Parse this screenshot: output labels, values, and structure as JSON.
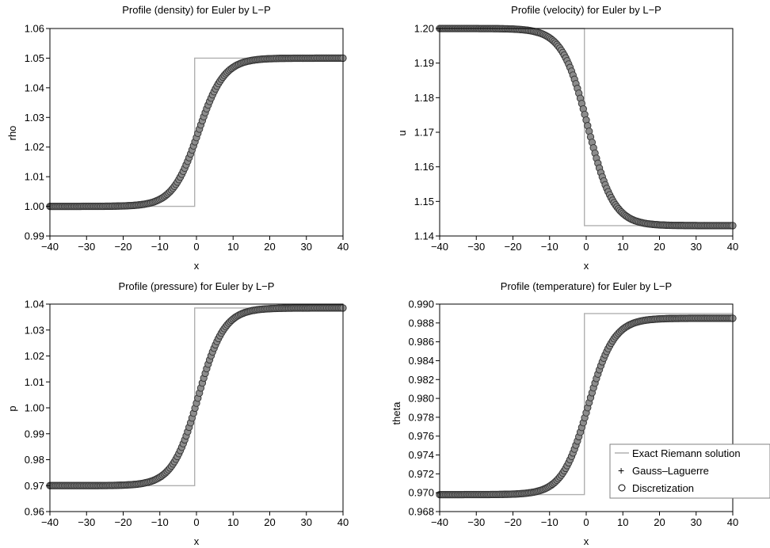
{
  "legend": {
    "exact_label": "Exact Riemann solution",
    "gl_label": "Gauss–Laguerre",
    "disc_label": "Discretization",
    "placement": "bottom-right of temperature panel"
  },
  "colors": {
    "exact": "#b0b0b0",
    "marker_stroke": "#333333",
    "marker_fill": "#8c8c8c",
    "axis": "#000000"
  },
  "chart_data": [
    {
      "type": "line",
      "title": "Profile (density) for Euler by L−P",
      "xlabel": "x",
      "ylabel": "rho",
      "xlim": [
        -40,
        40
      ],
      "ylim": [
        0.99,
        1.06
      ],
      "xticks": [
        -40,
        -30,
        -20,
        -10,
        0,
        10,
        20,
        30,
        40
      ],
      "xtick_labels": [
        "−40",
        "−30",
        "−20",
        "−10",
        "0",
        "10",
        "20",
        "30",
        "40"
      ],
      "yticks": [
        0.99,
        1.0,
        1.01,
        1.02,
        1.03,
        1.04,
        1.05,
        1.06
      ],
      "ytick_labels": [
        "0.99",
        "1.00",
        "1.01",
        "1.02",
        "1.03",
        "1.04",
        "1.05",
        "1.06"
      ],
      "series": [
        {
          "name": "Exact Riemann solution",
          "kind": "step",
          "x": [
            -40,
            -0.5,
            -0.5,
            40
          ],
          "y": [
            1.0,
            1.0,
            1.05,
            1.05
          ]
        },
        {
          "name": "Discretization",
          "kind": "sigmoid",
          "left": 1.0,
          "right": 1.05,
          "center": 0.5,
          "width": 3.5
        }
      ]
    },
    {
      "type": "line",
      "title": "Profile (velocity) for Euler by L−P",
      "xlabel": "x",
      "ylabel": "u",
      "xlim": [
        -40,
        40
      ],
      "ylim": [
        1.14,
        1.2
      ],
      "xticks": [
        -40,
        -30,
        -20,
        -10,
        0,
        10,
        20,
        30,
        40
      ],
      "xtick_labels": [
        "−40",
        "−30",
        "−20",
        "−10",
        "0",
        "10",
        "20",
        "30",
        "40"
      ],
      "yticks": [
        1.14,
        1.15,
        1.16,
        1.17,
        1.18,
        1.19,
        1.2
      ],
      "ytick_labels": [
        "1.14",
        "1.15",
        "1.16",
        "1.17",
        "1.18",
        "1.19",
        "1.20"
      ],
      "series": [
        {
          "name": "Exact Riemann solution",
          "kind": "step",
          "x": [
            -40,
            -0.5,
            -0.5,
            40
          ],
          "y": [
            1.2,
            1.2,
            1.143,
            1.143
          ]
        },
        {
          "name": "Discretization",
          "kind": "sigmoid",
          "left": 1.2,
          "right": 1.143,
          "center": 0.5,
          "width": 3.5
        }
      ]
    },
    {
      "type": "line",
      "title": "Profile (pressure) for Euler by L−P",
      "xlabel": "x",
      "ylabel": "p",
      "xlim": [
        -40,
        40
      ],
      "ylim": [
        0.96,
        1.04
      ],
      "xticks": [
        -40,
        -30,
        -20,
        -10,
        0,
        10,
        20,
        30,
        40
      ],
      "xtick_labels": [
        "−40",
        "−30",
        "−20",
        "−10",
        "0",
        "10",
        "20",
        "30",
        "40"
      ],
      "yticks": [
        0.96,
        0.97,
        0.98,
        0.99,
        1.0,
        1.01,
        1.02,
        1.03,
        1.04
      ],
      "ytick_labels": [
        "0.96",
        "0.97",
        "0.98",
        "0.99",
        "1.00",
        "1.01",
        "1.02",
        "1.03",
        "1.04"
      ],
      "series": [
        {
          "name": "Exact Riemann solution",
          "kind": "step",
          "x": [
            -40,
            -0.5,
            -0.5,
            40
          ],
          "y": [
            0.97,
            0.97,
            1.0385,
            1.0385
          ]
        },
        {
          "name": "Discretization",
          "kind": "sigmoid",
          "left": 0.97,
          "right": 1.0385,
          "center": 0.5,
          "width": 3.5
        }
      ]
    },
    {
      "type": "line",
      "title": "Profile (temperature) for Euler by L−P",
      "xlabel": "x",
      "ylabel": "theta",
      "xlim": [
        -40,
        40
      ],
      "ylim": [
        0.968,
        0.99
      ],
      "xticks": [
        -40,
        -30,
        -20,
        -10,
        0,
        10,
        20,
        30,
        40
      ],
      "xtick_labels": [
        "−40",
        "−30",
        "−20",
        "−10",
        "0",
        "10",
        "20",
        "30",
        "40"
      ],
      "yticks": [
        0.968,
        0.97,
        0.972,
        0.974,
        0.976,
        0.978,
        0.98,
        0.982,
        0.984,
        0.986,
        0.988,
        0.99
      ],
      "ytick_labels": [
        "0.968",
        "0.970",
        "0.972",
        "0.974",
        "0.976",
        "0.978",
        "0.980",
        "0.982",
        "0.984",
        "0.986",
        "0.988",
        "0.990"
      ],
      "legend": true,
      "series": [
        {
          "name": "Exact Riemann solution",
          "kind": "step",
          "x": [
            -40,
            -0.5,
            -0.5,
            40
          ],
          "y": [
            0.9698,
            0.9698,
            0.989,
            0.989
          ]
        },
        {
          "name": "Discretization",
          "kind": "sigmoid",
          "left": 0.9698,
          "right": 0.9885,
          "center": 0.5,
          "width": 3.5
        }
      ]
    }
  ]
}
